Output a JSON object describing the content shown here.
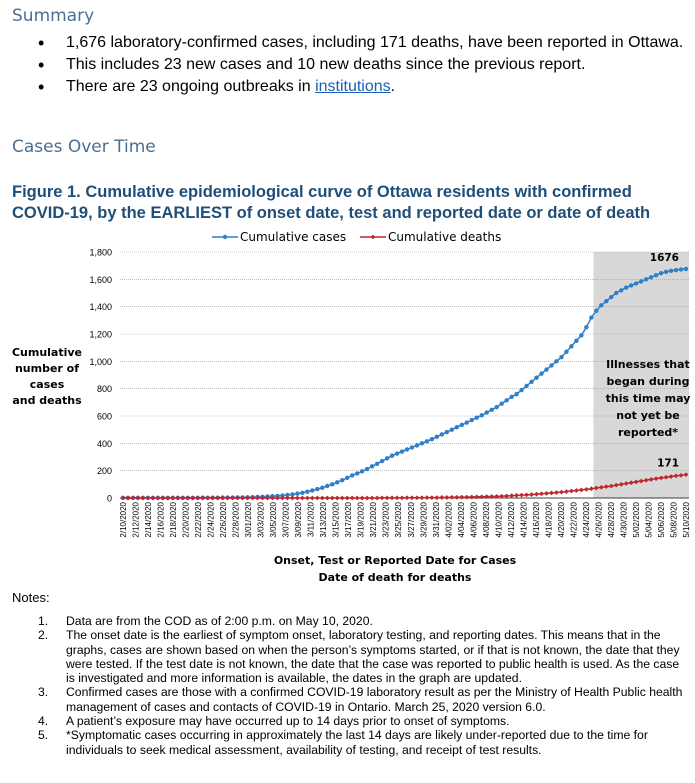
{
  "summary": {
    "heading": "Summary",
    "bullets": [
      "1,676 laboratory-confirmed cases, including 171 deaths, have been reported in Ottawa.",
      "This includes 23 new cases and 10 new deaths since the previous report."
    ],
    "bullet3_prefix": "There are 23 ongoing outbreaks in ",
    "bullet3_link": "institutions",
    "bullet3_suffix": "."
  },
  "cases_over_time": {
    "heading": "Cases Over Time",
    "figure_title": "Figure 1. Cumulative epidemiological curve of Ottawa residents with confirmed COVID-19, by the EARLIEST of onset date, test and reported date or date of death"
  },
  "chart_data": {
    "type": "line",
    "xlabel_line1": "Onset, Test or Reported Date for Cases",
    "xlabel_line2": "Date of death for deaths",
    "ylabel_lines": [
      "Cumulative",
      "number of",
      "cases",
      "and deaths"
    ],
    "ylim": [
      0,
      1800
    ],
    "y_ticks": [
      "0",
      "200",
      "400",
      "600",
      "800",
      "1,000",
      "1,200",
      "1,400",
      "1,600",
      "1,800"
    ],
    "x_tick_labels": [
      "2/10/2020",
      "2/12/2020",
      "2/14/2020",
      "2/16/2020",
      "2/18/2020",
      "2/20/2020",
      "2/22/2020",
      "2/24/2020",
      "2/26/2020",
      "2/28/2020",
      "3/01/2020",
      "3/03/2020",
      "3/05/2020",
      "3/07/2020",
      "3/09/2020",
      "3/11/2020",
      "3/13/2020",
      "3/15/2020",
      "3/17/2020",
      "3/19/2020",
      "3/21/2020",
      "3/23/2020",
      "3/25/2020",
      "3/27/2020",
      "3/29/2020",
      "3/31/2020",
      "4/02/2020",
      "4/04/2020",
      "4/06/2020",
      "4/08/2020",
      "4/10/2020",
      "4/12/2020",
      "4/14/2020",
      "4/16/2020",
      "4/18/2020",
      "4/20/2020",
      "4/22/2020",
      "4/24/2020",
      "4/26/2020",
      "4/28/2020",
      "4/30/2020",
      "5/02/2020",
      "5/04/2020",
      "5/06/2020",
      "5/08/2020",
      "5/10/2020"
    ],
    "legend_position": "top",
    "grid": true,
    "shaded_region_start": "4/26/2020",
    "shaded_annotation": [
      "Illnesses that",
      "began during",
      "this time may",
      "not yet be",
      "reported*"
    ],
    "series": [
      {
        "name": "Cumulative cases",
        "color": "#2f7fc9",
        "end_label": "1676",
        "values": [
          1,
          1,
          1,
          1,
          1,
          1,
          1,
          1,
          1,
          1,
          1,
          1,
          1,
          1,
          1,
          1,
          2,
          2,
          2,
          2,
          3,
          3,
          3,
          4,
          4,
          5,
          6,
          8,
          9,
          11,
          13,
          15,
          18,
          22,
          26,
          32,
          38,
          46,
          55,
          65,
          75,
          88,
          100,
          115,
          130,
          148,
          165,
          180,
          195,
          212,
          232,
          250,
          270,
          290,
          310,
          325,
          340,
          355,
          370,
          385,
          400,
          415,
          430,
          448,
          465,
          482,
          500,
          518,
          535,
          552,
          570,
          588,
          605,
          625,
          645,
          665,
          690,
          715,
          740,
          760,
          790,
          820,
          850,
          880,
          910,
          940,
          970,
          1000,
          1030,
          1070,
          1110,
          1150,
          1190,
          1250,
          1320,
          1370,
          1410,
          1440,
          1470,
          1500,
          1520,
          1540,
          1555,
          1570,
          1585,
          1600,
          1615,
          1630,
          1645,
          1655,
          1662,
          1668,
          1672,
          1676
        ]
      },
      {
        "name": "Cumulative deaths",
        "color": "#c0262d",
        "end_label": "171",
        "values": [
          0,
          0,
          0,
          0,
          0,
          0,
          0,
          0,
          0,
          0,
          0,
          0,
          0,
          0,
          0,
          0,
          0,
          0,
          0,
          0,
          0,
          0,
          0,
          0,
          0,
          0,
          0,
          0,
          0,
          0,
          0,
          0,
          0,
          0,
          0,
          0,
          0,
          0,
          0,
          0,
          0,
          0,
          0,
          0,
          0,
          0,
          0,
          0,
          0,
          0,
          0,
          0,
          1,
          1,
          1,
          1,
          1,
          2,
          2,
          2,
          2,
          3,
          3,
          3,
          4,
          4,
          5,
          5,
          6,
          6,
          7,
          8,
          9,
          10,
          11,
          12,
          13,
          15,
          17,
          19,
          21,
          23,
          25,
          28,
          31,
          34,
          37,
          40,
          43,
          47,
          51,
          55,
          59,
          63,
          68,
          73,
          78,
          83,
          88,
          94,
          100,
          106,
          112,
          118,
          124,
          130,
          136,
          142,
          147,
          152,
          157,
          162,
          166,
          171
        ]
      }
    ]
  },
  "notes": {
    "heading": "Notes:",
    "items": [
      {
        "num": "1.",
        "text": "Data are from the COD as of 2:00 p.m. on May 10, 2020."
      },
      {
        "num": "2.",
        "text": "The onset date is the earliest of symptom onset, laboratory testing, and reporting dates. This means that in the graphs, cases are shown based on when the person’s symptoms started, or if that is not known, the date that they were tested. If the test date is not known, the date that the case was reported to public health is used. As the case is investigated and more information is available, the dates in the graph are updated."
      },
      {
        "num": "3.",
        "text": "Confirmed cases are those with a confirmed COVID-19 laboratory result as per the Ministry of Health Public health management of cases and contacts of COVID-19 in Ontario. March 25, 2020 version 6.0."
      },
      {
        "num": "4.",
        "text": "A patient’s exposure may have occurred up to 14 days prior to onset of symptoms."
      },
      {
        "num": "5.",
        "text": "*Symptomatic cases occurring in approximately the last 14 days are likely under-reported due to the time for individuals to seek medical assessment, availability of testing, and receipt of test results."
      }
    ]
  }
}
